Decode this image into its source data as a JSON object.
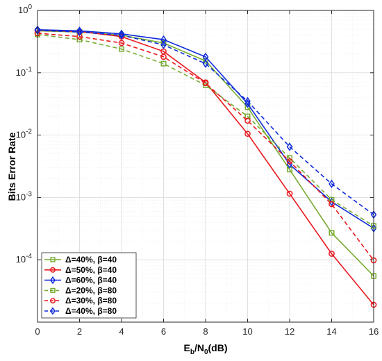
{
  "chart_data": {
    "type": "line",
    "xlabel_main": "E",
    "xlabel_sub1": "b",
    "xlabel_mid": "/N",
    "xlabel_sub2": "0",
    "xlabel_tail": "(dB)",
    "ylabel": "Bits Error Rate",
    "xlim": [
      0,
      16
    ],
    "ylim": [
      1e-05,
      1
    ],
    "yscale": "log",
    "grid": true,
    "legend_position": "bottom-left",
    "x": [
      0,
      2,
      4,
      6,
      8,
      10,
      12,
      14,
      16
    ],
    "x_ticks": [
      0,
      2,
      4,
      6,
      8,
      10,
      12,
      14,
      16
    ],
    "y_ticks": [
      {
        "value": 1,
        "base": "10",
        "exp": "0"
      },
      {
        "value": 0.1,
        "base": "10",
        "exp": "-1"
      },
      {
        "value": 0.01,
        "base": "10",
        "exp": "-2"
      },
      {
        "value": 0.001,
        "base": "10",
        "exp": "-3"
      },
      {
        "value": 0.0001,
        "base": "10",
        "exp": "-4"
      }
    ],
    "series": [
      {
        "name": "Δ=40%, β=40",
        "color": "#77AC30",
        "dash": "solid",
        "marker": "square",
        "values": [
          0.47,
          0.45,
          0.4,
          0.3,
          0.155,
          0.028,
          0.0028,
          0.00027,
          5.5e-05
        ]
      },
      {
        "name": "Δ=50%, β=40",
        "color": "#E8171D",
        "dash": "solid",
        "marker": "circle",
        "values": [
          0.48,
          0.46,
          0.38,
          0.22,
          0.07,
          0.0105,
          0.00115,
          0.000125,
          1.9e-05
        ]
      },
      {
        "name": "Δ=60%, β=40",
        "color": "#0F2BDB",
        "dash": "solid",
        "marker": "diamond",
        "values": [
          0.49,
          0.47,
          0.42,
          0.34,
          0.18,
          0.032,
          0.0034,
          0.00085,
          0.00032
        ]
      },
      {
        "name": "Δ=20%, β=80",
        "color": "#77AC30",
        "dash": "dashed",
        "marker": "square",
        "values": [
          0.41,
          0.34,
          0.24,
          0.14,
          0.063,
          0.02,
          0.0043,
          0.00092,
          0.00035
        ]
      },
      {
        "name": "Δ=30%, β=80",
        "color": "#E8171D",
        "dash": "dashed",
        "marker": "circle",
        "values": [
          0.43,
          0.38,
          0.3,
          0.18,
          0.068,
          0.017,
          0.0038,
          0.00078,
          9.8e-05
        ]
      },
      {
        "name": "Δ=40%, β=80",
        "color": "#0F2BDB",
        "dash": "dashed",
        "marker": "diamond",
        "values": [
          0.48,
          0.45,
          0.4,
          0.28,
          0.14,
          0.035,
          0.0065,
          0.00165,
          0.00053
        ]
      }
    ]
  }
}
